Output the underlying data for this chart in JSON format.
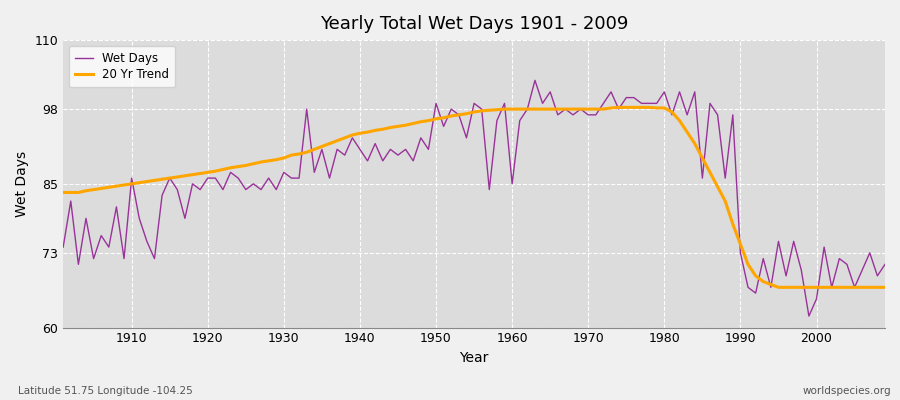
{
  "title": "Yearly Total Wet Days 1901 - 2009",
  "xlabel": "Year",
  "ylabel": "Wet Days",
  "subtitle_left": "Latitude 51.75 Longitude -104.25",
  "subtitle_right": "worldspecies.org",
  "ylim": [
    60,
    110
  ],
  "xlim": [
    1901,
    2009
  ],
  "yticks": [
    60,
    73,
    85,
    98,
    110
  ],
  "xticks": [
    1910,
    1920,
    1930,
    1940,
    1950,
    1960,
    1970,
    1980,
    1990,
    2000
  ],
  "wet_days_color": "#993399",
  "trend_color": "#FFA500",
  "plot_bg_color": "#DCDCDC",
  "fig_bg_color": "#F0F0F0",
  "wet_days": {
    "1901": 74,
    "1902": 82,
    "1903": 71,
    "1904": 79,
    "1905": 72,
    "1906": 76,
    "1907": 74,
    "1908": 81,
    "1909": 72,
    "1910": 86,
    "1911": 79,
    "1912": 75,
    "1913": 72,
    "1914": 83,
    "1915": 86,
    "1916": 84,
    "1917": 79,
    "1918": 85,
    "1919": 84,
    "1920": 86,
    "1921": 86,
    "1922": 84,
    "1923": 87,
    "1924": 86,
    "1925": 84,
    "1926": 85,
    "1927": 84,
    "1928": 86,
    "1929": 84,
    "1930": 87,
    "1931": 86,
    "1932": 86,
    "1933": 98,
    "1934": 87,
    "1935": 91,
    "1936": 86,
    "1937": 91,
    "1938": 90,
    "1939": 93,
    "1940": 91,
    "1941": 89,
    "1942": 92,
    "1943": 89,
    "1944": 91,
    "1945": 90,
    "1946": 91,
    "1947": 89,
    "1948": 93,
    "1949": 91,
    "1950": 99,
    "1951": 95,
    "1952": 98,
    "1953": 97,
    "1954": 93,
    "1955": 99,
    "1956": 98,
    "1957": 84,
    "1958": 96,
    "1959": 99,
    "1960": 85,
    "1961": 96,
    "1962": 98,
    "1963": 103,
    "1964": 99,
    "1965": 101,
    "1966": 97,
    "1967": 98,
    "1968": 97,
    "1969": 98,
    "1970": 97,
    "1971": 97,
    "1972": 99,
    "1973": 101,
    "1974": 98,
    "1975": 100,
    "1976": 100,
    "1977": 99,
    "1978": 99,
    "1979": 99,
    "1980": 101,
    "1981": 97,
    "1982": 101,
    "1983": 97,
    "1984": 101,
    "1985": 86,
    "1986": 99,
    "1987": 97,
    "1988": 86,
    "1989": 97,
    "1990": 73,
    "1991": 67,
    "1992": 66,
    "1993": 72,
    "1994": 67,
    "1995": 75,
    "1996": 69,
    "1997": 75,
    "1998": 70,
    "1999": 62,
    "2000": 65,
    "2001": 74,
    "2002": 67,
    "2003": 72,
    "2004": 71,
    "2005": 67,
    "2006": 70,
    "2007": 73,
    "2008": 69,
    "2009": 71
  },
  "trend_20yr": {
    "1901": 83.5,
    "1902": 83.5,
    "1903": 83.5,
    "1904": 83.8,
    "1905": 84.0,
    "1906": 84.2,
    "1907": 84.4,
    "1908": 84.6,
    "1909": 84.8,
    "1910": 85.0,
    "1911": 85.2,
    "1912": 85.4,
    "1913": 85.6,
    "1914": 85.8,
    "1915": 86.0,
    "1916": 86.2,
    "1917": 86.4,
    "1918": 86.6,
    "1919": 86.8,
    "1920": 87.0,
    "1921": 87.2,
    "1922": 87.5,
    "1923": 87.8,
    "1924": 88.0,
    "1925": 88.2,
    "1926": 88.5,
    "1927": 88.8,
    "1928": 89.0,
    "1929": 89.2,
    "1930": 89.5,
    "1931": 90.0,
    "1932": 90.2,
    "1933": 90.5,
    "1934": 91.0,
    "1935": 91.5,
    "1936": 92.0,
    "1937": 92.5,
    "1938": 93.0,
    "1939": 93.5,
    "1940": 93.8,
    "1941": 94.0,
    "1942": 94.3,
    "1943": 94.5,
    "1944": 94.8,
    "1945": 95.0,
    "1946": 95.2,
    "1947": 95.5,
    "1948": 95.8,
    "1949": 96.0,
    "1950": 96.3,
    "1951": 96.5,
    "1952": 96.8,
    "1953": 97.0,
    "1954": 97.2,
    "1955": 97.5,
    "1956": 97.7,
    "1957": 97.8,
    "1958": 97.9,
    "1959": 98.0,
    "1960": 98.0,
    "1961": 98.0,
    "1962": 98.0,
    "1963": 98.0,
    "1964": 98.0,
    "1965": 98.0,
    "1966": 98.0,
    "1967": 98.0,
    "1968": 98.0,
    "1969": 98.0,
    "1970": 98.0,
    "1971": 98.0,
    "1972": 98.0,
    "1973": 98.2,
    "1974": 98.3,
    "1975": 98.3,
    "1976": 98.3,
    "1977": 98.3,
    "1978": 98.3,
    "1979": 98.2,
    "1980": 98.2,
    "1981": 97.5,
    "1982": 96.0,
    "1983": 94.0,
    "1984": 92.0,
    "1985": 89.5,
    "1986": 87.0,
    "1987": 84.5,
    "1988": 82.0,
    "1989": 78.0,
    "1990": 74.5,
    "1991": 71.0,
    "1992": 69.0,
    "1993": 68.0,
    "1994": 67.5,
    "1995": 67.0,
    "1996": 67.0,
    "1997": 67.0,
    "1998": 67.0,
    "1999": 67.0,
    "2000": 67.0,
    "2001": 67.0,
    "2002": 67.0,
    "2003": 67.0,
    "2004": 67.0,
    "2005": 67.0,
    "2006": 67.0,
    "2007": 67.0,
    "2008": 67.0,
    "2009": 67.0
  }
}
